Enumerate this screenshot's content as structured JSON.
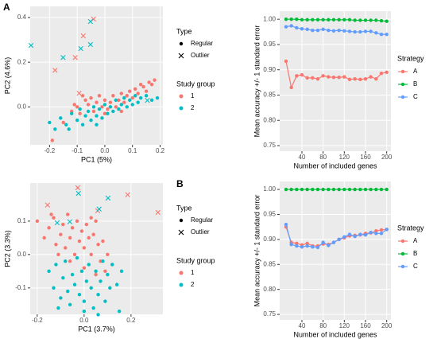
{
  "chart_data": [
    {
      "type": "scatter",
      "panel": "A",
      "x_label": "PC1 (5%)",
      "y_label": "PC2 (4.6%)",
      "xlim": [
        -0.27,
        0.21
      ],
      "ylim": [
        -0.17,
        0.45
      ],
      "xticks": [
        -0.2,
        -0.1,
        {
          "value": 0,
          "label": "0.0"
        },
        0.1,
        0.2
      ],
      "yticks": [
        {
          "value": 0,
          "label": "0.0"
        },
        0.2,
        0.4
      ],
      "grid": true,
      "type_legend": {
        "title": "Type",
        "labels": [
          "Regular",
          "Outlier"
        ]
      },
      "group_legend": {
        "title": "Study group"
      },
      "series": [
        {
          "name": "1",
          "color": "#F8766D",
          "regular": {
            "x": [
              -0.19,
              -0.15,
              -0.12,
              -0.1,
              -0.08,
              -0.07,
              -0.06,
              -0.05,
              -0.04,
              -0.03,
              -0.02,
              -0.01,
              0.0,
              0.01,
              0.02,
              0.03,
              0.04,
              0.05,
              0.06,
              0.07,
              0.08,
              0.09,
              0.1,
              0.11,
              0.12,
              0.13,
              0.14,
              0.15,
              0.16,
              0.17,
              0.18,
              -0.09,
              -0.11,
              0.0,
              0.06
            ],
            "y": [
              -0.15,
              -0.07,
              -0.02,
              0.0,
              0.05,
              0.03,
              0.01,
              0.04,
              -0.02,
              0.02,
              0.05,
              0.0,
              0.03,
              -0.01,
              0.02,
              0.05,
              0.0,
              0.03,
              0.06,
              0.02,
              0.05,
              0.07,
              0.04,
              0.08,
              0.06,
              0.1,
              0.09,
              0.07,
              0.11,
              0.1,
              0.12,
              -0.03,
              0.01,
              -0.03,
              -0.02
            ]
          },
          "outlier": {
            "x": [
              -0.18,
              -0.107,
              -0.078,
              -0.041,
              -0.093
            ],
            "y": [
              0.164,
              0.221,
              0.318,
              0.393,
              0.061
            ]
          }
        },
        {
          "name": "2",
          "color": "#00BFC4",
          "regular": {
            "x": [
              -0.2,
              -0.18,
              -0.16,
              -0.14,
              -0.12,
              -0.1,
              -0.09,
              -0.08,
              -0.07,
              -0.06,
              -0.05,
              -0.04,
              -0.03,
              -0.02,
              -0.01,
              0.0,
              0.01,
              0.02,
              0.03,
              0.04,
              0.05,
              0.06,
              0.07,
              0.08,
              0.09,
              0.1,
              0.11,
              0.12,
              0.13,
              0.15,
              0.17,
              0.19,
              -0.13,
              -0.03
            ],
            "y": [
              -0.07,
              -0.1,
              -0.05,
              -0.08,
              -0.03,
              -0.06,
              -0.01,
              -0.08,
              -0.04,
              -0.02,
              -0.06,
              0.0,
              -0.04,
              -0.01,
              -0.05,
              0.01,
              -0.03,
              0.0,
              -0.02,
              0.03,
              -0.01,
              0.01,
              0.04,
              0.0,
              0.03,
              0.01,
              0.05,
              0.02,
              0.04,
              0.05,
              0.03,
              0.04,
              -0.1,
              -0.08
            ]
          },
          "outlier": {
            "x": [
              -0.267,
              -0.151,
              -0.087,
              -0.052,
              -0.052,
              0.154
            ],
            "y": [
              0.275,
              0.221,
              0.261,
              0.279,
              0.382,
              0.029
            ]
          }
        }
      ]
    },
    {
      "type": "line",
      "x_label": "Number of included genes",
      "y_label": "Mean accuracy +/- 1 standard error",
      "legend_title": "Strategy",
      "x": [
        10,
        20,
        30,
        40,
        50,
        60,
        70,
        80,
        90,
        100,
        110,
        120,
        130,
        140,
        150,
        160,
        170,
        180,
        190,
        200
      ],
      "xlim": [
        -2,
        208
      ],
      "ylim": [
        0.739,
        1.016
      ],
      "xticks": [
        40,
        80,
        120,
        160,
        200
      ],
      "yticks": [
        0.75,
        {
          "value": 0.8,
          "label": "0.80"
        },
        0.85,
        {
          "value": 0.9,
          "label": "0.90"
        },
        0.95,
        {
          "value": 1,
          "label": "1.00"
        }
      ],
      "grid": true,
      "series": [
        {
          "name": "A",
          "color": "#F8766D",
          "values": [
            0.917,
            0.865,
            0.888,
            0.89,
            0.884,
            0.884,
            0.882,
            0.888,
            0.886,
            0.885,
            0.885,
            0.886,
            0.881,
            0.882,
            0.881,
            0.882,
            0.886,
            0.882,
            0.893,
            0.895
          ]
        },
        {
          "name": "B",
          "color": "#00BA38",
          "values": [
            1.0,
            1.0,
            1.0,
            0.999,
            0.999,
            0.999,
            0.999,
            0.999,
            0.999,
            0.999,
            0.999,
            0.999,
            0.999,
            0.998,
            0.998,
            0.998,
            0.998,
            0.998,
            0.997,
            0.996
          ]
        },
        {
          "name": "C",
          "color": "#619CFF",
          "values": [
            0.985,
            0.987,
            0.983,
            0.981,
            0.98,
            0.978,
            0.978,
            0.98,
            0.978,
            0.977,
            0.978,
            0.977,
            0.976,
            0.975,
            0.975,
            0.976,
            0.976,
            0.973,
            0.97,
            0.97
          ]
        }
      ]
    },
    {
      "type": "scatter",
      "panel": "B",
      "x_label": "PC1 (3.7%)",
      "y_label": "PC2 (3.3%)",
      "xlim": [
        -0.23,
        0.336
      ],
      "ylim": [
        -0.179,
        0.214
      ],
      "xticks": [
        -0.2,
        {
          "value": 0,
          "label": "0.0"
        },
        0.2
      ],
      "yticks": [
        -0.1,
        {
          "value": 0,
          "label": "0.0"
        },
        0.1
      ],
      "grid": true,
      "type_legend": {
        "title": "Type",
        "labels": [
          "Regular",
          "Outlier"
        ]
      },
      "group_legend": {
        "title": "Study group"
      },
      "series": [
        {
          "name": "1",
          "color": "#F8766D",
          "regular": {
            "x": [
              -0.2,
              -0.17,
              -0.15,
              -0.13,
              -0.12,
              -0.1,
              -0.09,
              -0.08,
              -0.07,
              -0.06,
              -0.05,
              -0.04,
              -0.03,
              -0.02,
              -0.01,
              0.0,
              0.01,
              0.02,
              0.03,
              0.04,
              0.05,
              0.06,
              0.07,
              0.08,
              0.09,
              0.1,
              0.12,
              -0.11,
              -0.06,
              0.0,
              0.05,
              -0.14,
              0.03
            ],
            "y": [
              0.1,
              0.05,
              0.08,
              0.11,
              0.03,
              0.06,
              0.09,
              0.02,
              0.12,
              0.05,
              0.08,
              0.0,
              0.1,
              0.04,
              0.07,
              0.02,
              0.09,
              0.05,
              0.0,
              0.06,
              0.1,
              0.03,
              -0.02,
              0.04,
              -0.05,
              0.0,
              -0.03,
              0.0,
              -0.02,
              -0.04,
              -0.06,
              0.12,
              0.11
            ]
          },
          "outlier": {
            "x": [
              -0.027,
              -0.156,
              0.058,
              0.186,
              0.315
            ],
            "y": [
              0.2,
              0.148,
              0.131,
              0.179,
              0.126
            ]
          }
        },
        {
          "name": "2",
          "color": "#00BFC4",
          "regular": {
            "x": [
              -0.15,
              -0.13,
              -0.12,
              -0.1,
              -0.09,
              -0.08,
              -0.07,
              -0.06,
              -0.05,
              -0.04,
              -0.03,
              -0.02,
              -0.01,
              0.0,
              0.01,
              0.02,
              0.03,
              0.04,
              0.05,
              0.06,
              0.07,
              0.08,
              0.09,
              0.1,
              0.11,
              0.12,
              0.14,
              0.15,
              0.16,
              -0.11,
              0.0,
              0.06
            ],
            "y": [
              -0.05,
              -0.1,
              -0.03,
              -0.13,
              -0.07,
              -0.02,
              -0.11,
              -0.15,
              -0.06,
              -0.09,
              -0.01,
              -0.12,
              -0.05,
              -0.14,
              -0.08,
              -0.03,
              -0.1,
              -0.16,
              -0.05,
              -0.12,
              -0.08,
              -0.02,
              -0.14,
              -0.06,
              -0.1,
              -0.03,
              -0.09,
              -0.17,
              -0.05,
              -0.16,
              -0.17,
              -0.18
            ]
          },
          "outlier": {
            "x": [
              -0.024,
              -0.115,
              -0.061,
              0.102,
              0.064
            ],
            "y": [
              0.183,
              0.095,
              0.098,
              0.169,
              0.136
            ]
          }
        }
      ]
    },
    {
      "type": "line",
      "x_label": "Number of included genes",
      "y_label": "Mean accuracy +/- 1 standard error",
      "legend_title": "Strategy",
      "x": [
        10,
        20,
        30,
        40,
        50,
        60,
        70,
        80,
        90,
        100,
        110,
        120,
        130,
        140,
        150,
        160,
        170,
        180,
        190,
        200
      ],
      "xlim": [
        -2,
        208
      ],
      "ylim": [
        0.739,
        1.016
      ],
      "xticks": [
        40,
        80,
        120,
        160,
        200
      ],
      "yticks": [
        0.75,
        {
          "value": 0.8,
          "label": "0.80"
        },
        0.85,
        {
          "value": 0.9,
          "label": "0.90"
        },
        0.95,
        {
          "value": 1,
          "label": "1.00"
        }
      ],
      "grid": true,
      "series": [
        {
          "name": "A",
          "color": "#F8766D",
          "values": [
            0.925,
            0.894,
            0.892,
            0.889,
            0.892,
            0.887,
            0.887,
            0.891,
            0.89,
            0.894,
            0.9,
            0.903,
            0.907,
            0.908,
            0.909,
            0.912,
            0.913,
            0.917,
            0.919,
            0.92
          ]
        },
        {
          "name": "B",
          "color": "#00BA38",
          "values": [
            1.0,
            1.0,
            1.0,
            1.0,
            1.0,
            1.0,
            1.0,
            1.0,
            1.0,
            1.0,
            1.0,
            1.0,
            1.0,
            1.0,
            1.0,
            1.0,
            1.0,
            1.0,
            1.0,
            1.0
          ]
        },
        {
          "name": "C",
          "color": "#619CFF",
          "values": [
            0.93,
            0.89,
            0.887,
            0.885,
            0.887,
            0.885,
            0.884,
            0.894,
            0.888,
            0.894,
            0.9,
            0.905,
            0.91,
            0.906,
            0.91,
            0.909,
            0.914,
            0.912,
            0.912,
            0.92
          ]
        }
      ]
    }
  ]
}
